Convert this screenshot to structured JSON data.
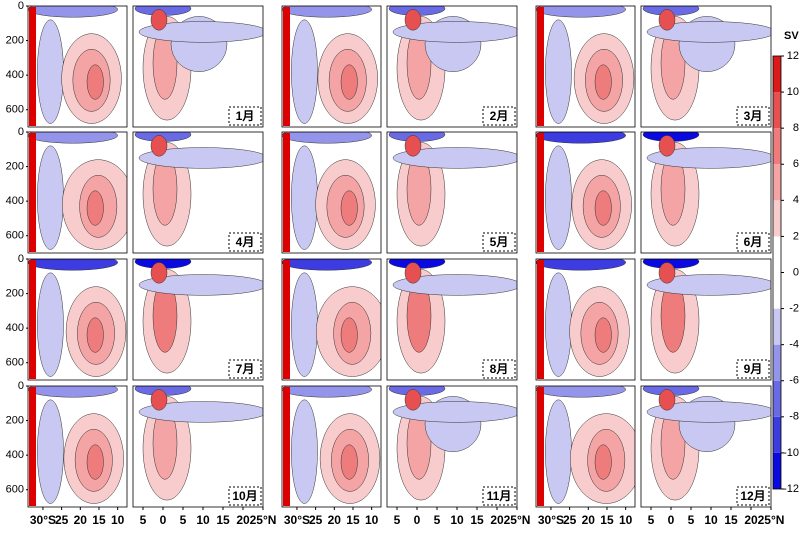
{
  "chart_data": {
    "type": "contour",
    "panels": [
      "1月",
      "2月",
      "3月",
      "4月",
      "5月",
      "6月",
      "7月",
      "8月",
      "9月",
      "10月",
      "11月",
      "12月"
    ],
    "ylim": [
      0,
      700
    ],
    "yticks": [
      0,
      200,
      400,
      600
    ],
    "xsegments": [
      [
        -34,
        -7.5
      ],
      [
        -7.5,
        25
      ]
    ],
    "xticks": [
      {
        "value": -30,
        "label": "30°S"
      },
      {
        "value": -25,
        "label": "25"
      },
      {
        "value": -20,
        "label": "20"
      },
      {
        "value": -15,
        "label": "15"
      },
      {
        "value": -10,
        "label": "10"
      },
      {
        "value": -5,
        "label": "5"
      },
      {
        "value": 0,
        "label": "0"
      },
      {
        "value": 5,
        "label": "5"
      },
      {
        "value": 10,
        "label": "10"
      },
      {
        "value": 15,
        "label": "15"
      },
      {
        "value": 20,
        "label": "20"
      },
      {
        "value": 25,
        "label": "25°N"
      }
    ],
    "colorbar": {
      "label": "SV",
      "ticks": [
        -12,
        -10,
        -8,
        -6,
        -4,
        -2,
        0,
        2,
        4,
        6,
        8,
        10,
        12
      ],
      "colors": [
        "#0a0ae0",
        "#3c3ce0",
        "#6a6ae4",
        "#9494ea",
        "#c8c8f2",
        "#ffffff",
        "#ffffff",
        "#f8cccc",
        "#f4a4a4",
        "#ee7c7c",
        "#e65050",
        "#dc1a1a"
      ]
    }
  }
}
